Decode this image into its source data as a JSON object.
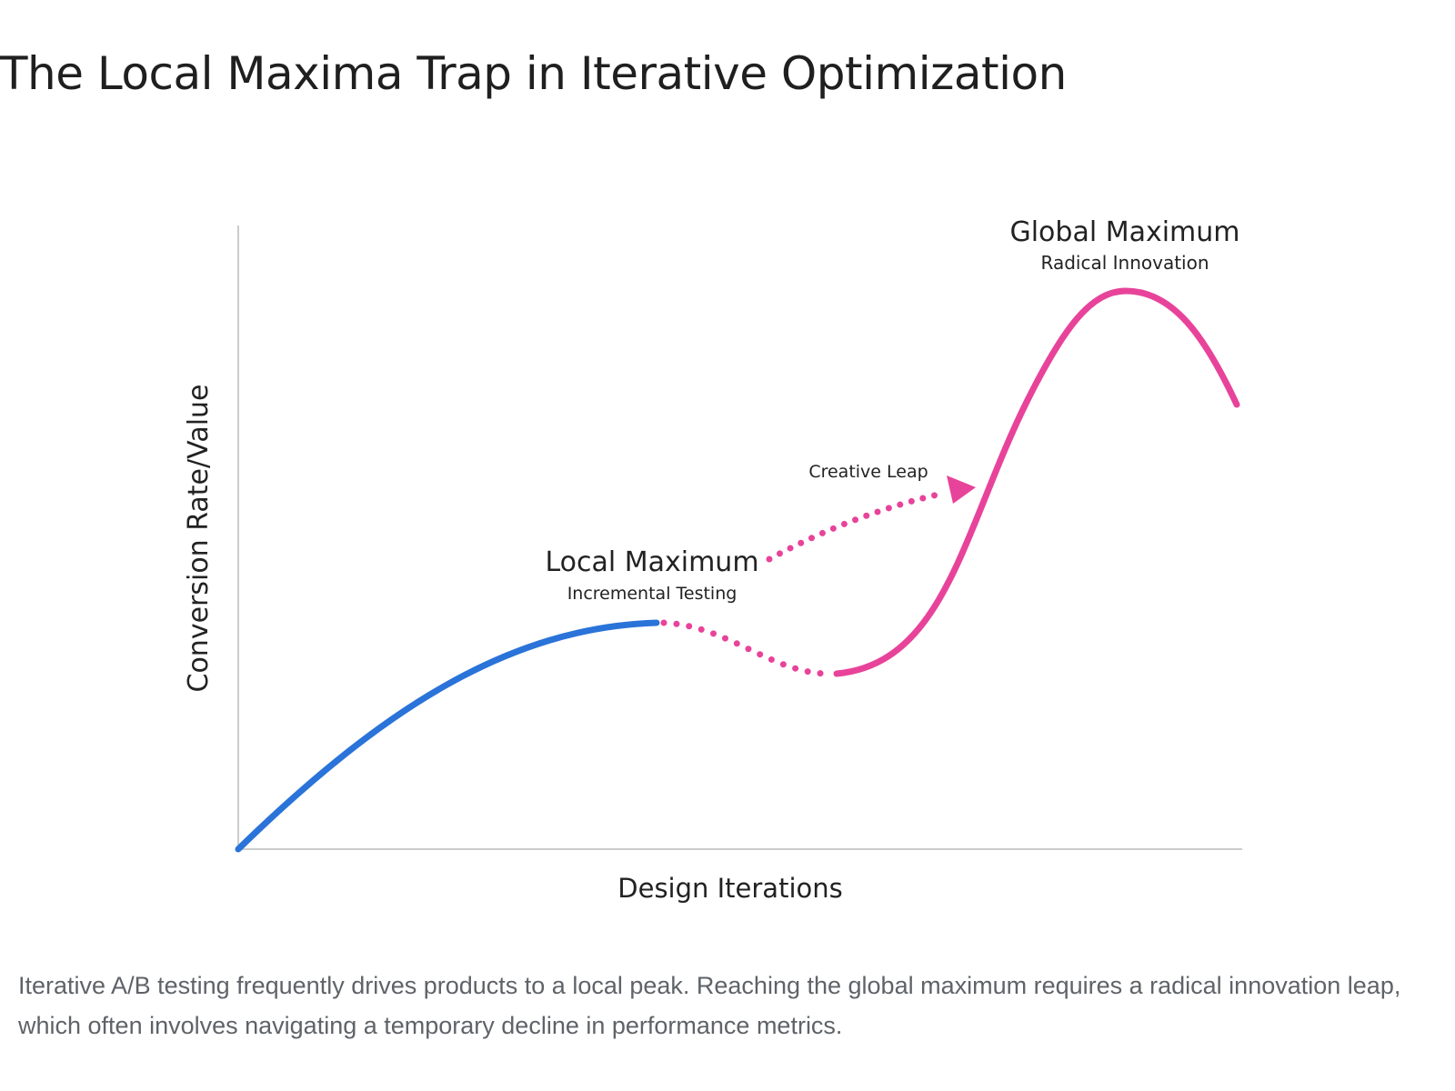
{
  "title": "The Local Maxima Trap in Iterative Optimization",
  "diagram": {
    "y_axis_label": "Conversion Rate/Value",
    "x_axis_label": "Design Iterations",
    "local_max": {
      "title": "Local Maximum",
      "subtitle": "Incremental Testing"
    },
    "global_max": {
      "title": "Global Maximum",
      "subtitle": "Radical Innovation"
    },
    "leap_label": "Creative Leap",
    "colors": {
      "incremental_curve": "#2a73d9",
      "innovation_curve": "#e8439a",
      "axis": "#cccccc",
      "label_text": "#222222"
    }
  },
  "caption": "Iterative A/B testing frequently drives products to a local peak. Reaching the global maximum requires a radical innovation leap, which often involves navigating a temporary decline in performance metrics."
}
